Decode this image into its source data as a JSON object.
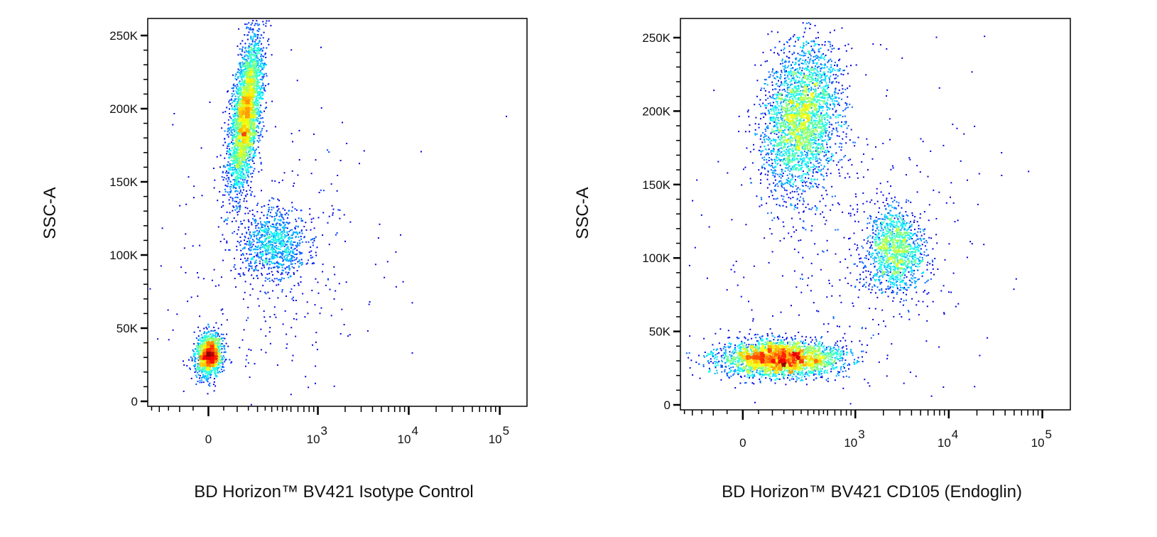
{
  "chart_data": [
    {
      "type": "scatter",
      "subtype": "flow-cytometry density dot plot",
      "xlabel": "BD Horizon™ BV421 Isotype Control",
      "ylabel": "SSC-A",
      "x_scale": "biexponential",
      "x_ticks": [
        {
          "value": 0,
          "label": "0"
        },
        {
          "value": 1000,
          "base": "10",
          "exp": "3"
        },
        {
          "value": 10000,
          "base": "10",
          "exp": "4"
        },
        {
          "value": 100000,
          "base": "10",
          "exp": "5"
        }
      ],
      "y_ticks": [
        "0",
        "50K",
        "100K",
        "150K",
        "200K",
        "250K"
      ],
      "ylim": [
        0,
        262144
      ],
      "color_map": "jet density (blue low → red high)",
      "populations": [
        {
          "x_center": 0,
          "x_sd_decades": 0.07,
          "y_center": 32000,
          "y_sd": 7000,
          "events": 1500,
          "corr": 0.1
        },
        {
          "x_center": 135,
          "x_sd_decades": 0.09,
          "y_center": 196000,
          "y_sd": 26000,
          "events": 3300,
          "corr": 0.55
        },
        {
          "x_center": 310,
          "x_sd_decades": 0.18,
          "y_center": 108000,
          "y_sd": 12000,
          "events": 900,
          "corr": 0.0
        },
        {
          "x_center": 300,
          "x_sd_decades": 0.6,
          "y_center": 90000,
          "y_sd": 55000,
          "events": 350,
          "corr": 0.0
        }
      ]
    },
    {
      "type": "scatter",
      "subtype": "flow-cytometry density dot plot",
      "xlabel": "BD Horizon™ BV421 CD105 (Endoglin)",
      "ylabel": "SSC-A",
      "x_scale": "biexponential",
      "x_ticks": [
        {
          "value": 0,
          "label": "0"
        },
        {
          "value": 1000,
          "base": "10",
          "exp": "3"
        },
        {
          "value": 10000,
          "base": "10",
          "exp": "4"
        },
        {
          "value": 100000,
          "base": "10",
          "exp": "5"
        }
      ],
      "y_ticks": [
        "0",
        "50K",
        "100K",
        "150K",
        "200K",
        "250K"
      ],
      "ylim": [
        0,
        262144
      ],
      "color_map": "jet density (blue low → red high)",
      "populations": [
        {
          "x_center": 130,
          "x_sd_decades": 0.32,
          "y_center": 32000,
          "y_sd": 6000,
          "events": 3000,
          "corr": 0.0
        },
        {
          "x_center": 243,
          "x_sd_decades": 0.2,
          "y_center": 195000,
          "y_sd": 25000,
          "events": 3000,
          "corr": 0.2
        },
        {
          "x_center": 2650,
          "x_sd_decades": 0.16,
          "y_center": 105000,
          "y_sd": 14000,
          "events": 1300,
          "corr": 0.0
        },
        {
          "x_center": 800,
          "x_sd_decades": 0.7,
          "y_center": 110000,
          "y_sd": 60000,
          "events": 400,
          "corr": 0.0
        }
      ]
    }
  ]
}
